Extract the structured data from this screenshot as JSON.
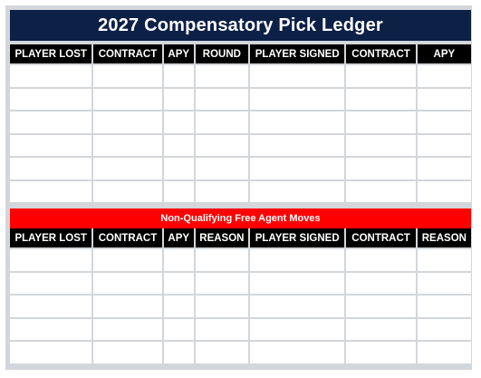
{
  "title": "2027 Compensatory Pick Ledger",
  "section1": {
    "headers": [
      "PLAYER LOST",
      "CONTRACT",
      "APY",
      "ROUND",
      "PLAYER SIGNED",
      "CONTRACT",
      "APY"
    ],
    "row_count": 6
  },
  "section2": {
    "banner": "Non-Qualifying Free Agent Moves",
    "headers": [
      "PLAYER LOST",
      "CONTRACT",
      "APY",
      "REASON",
      "PLAYER SIGNED",
      "CONTRACT",
      "REASON"
    ],
    "row_count": 5
  },
  "colors": {
    "title_bg": "#0d2147",
    "header_bg": "#000000",
    "banner_bg": "#ff0000",
    "grid": "#d3d6da"
  }
}
